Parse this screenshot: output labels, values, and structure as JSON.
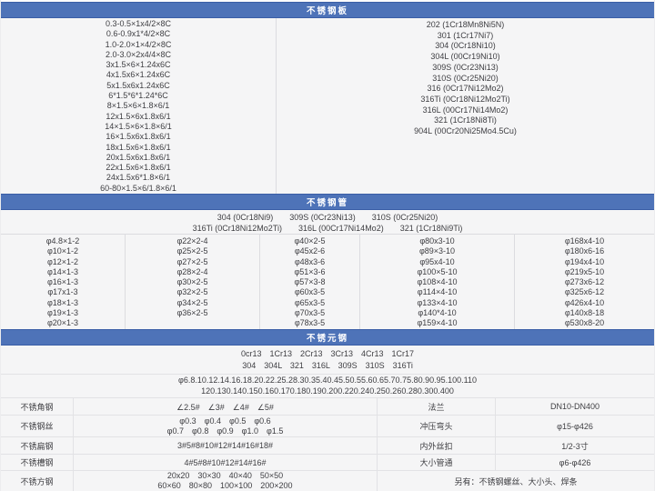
{
  "colors": {
    "header_bar": "#4e73b8",
    "header_border": "#3a5ea6",
    "body_bg": "#f5f5f6"
  },
  "sections": {
    "plate": {
      "title": "不锈钢板",
      "sizes": [
        "0.3-0.5×1x4/2×8C",
        "0.6-0.9x1*4/2×8C",
        "1.0-2.0×1×4/2×8C",
        "2.0-3.0×2x4/4×8C",
        "3x1.5×6×1.24x6C",
        "4x1.5x6×1.24x6C",
        "5x1.5x6x1.24x6C",
        "6*1.5*6*1.24*6C",
        "8×1.5×6×1.8×6/1",
        "12x1.5×6x1.8x6/1",
        "14×1.5×6×1.8×6/1",
        "16×1.5x6x1.8x6/1",
        "18x1.5x6×1.8x6/1",
        "20x1.5x6x1.8x6/1",
        "22x1.5x6×1.8x6/1",
        "24x1.5x6*1.8×6/1",
        "60-80×1.5×6/1.8×6/1"
      ],
      "grades": [
        "202 (1Cr18Mn8Ni5N)",
        "301 (1Cr17Ni7)",
        "304 (0Cr18Ni10)",
        "304L (00Cr19Ni10)",
        "309S (0Cr23Ni13)",
        "310S (0Cr25Ni20)",
        "316 (0Cr17Ni12Mo2)",
        "316Ti (0Cr18Ni12Mo2Ti)",
        "316L (00Cr17Ni14Mo2)",
        "321 (1Cr18Ni8Ti)",
        "904L (00Cr20Ni25Mo4.5Cu)"
      ]
    },
    "pipe": {
      "title": "不锈钢管",
      "grade_line1": "304 (0Cr18Ni9)　　309S (0Cr23Ni13)　　310S (0Cr25Ni20)",
      "grade_line2": "316Ti (0Cr18Ni12Mo2Ti)　　316L (00Cr17Ni14Mo2)　　321 (1Cr18Ni9Ti)",
      "columns": [
        [
          "φ4.8×1-2",
          "φ10×1-2",
          "φ12×1-2",
          "φ14×1-3",
          "φ16×1-3",
          "φ17x1-3",
          "φ18×1-3",
          "φ19×1-3",
          "φ20×1-3"
        ],
        [
          "φ22×2-4",
          "φ25×2-5",
          "φ27×2-5",
          "φ28×2-4",
          "φ30×2-5",
          "φ32×2-5",
          "φ34×2-5",
          "φ36×2-5",
          ""
        ],
        [
          "φ40×2-5",
          "φ45x2-6",
          "φ48x3-6",
          "φ51×3-6",
          "φ57×3-8",
          "φ60x3-5",
          "φ65x3-5",
          "φ70x3-5",
          "φ78x3-5"
        ],
        [
          "φ80x3-10",
          "φ89×3-10",
          "φ95x4-10",
          "φ100×5-10",
          "φ108×4-10",
          "φ114×4-10",
          "φ133×4-10",
          "φ140*4-10",
          "φ159×4-10"
        ],
        [
          "φ168x4-10",
          "φ180x6-16",
          "φ194x4-10",
          "φ219x5-10",
          "φ273x6-12",
          "φ325x6-12",
          "φ426x4-10",
          "φ140x8-18",
          "φ530x8-20"
        ]
      ]
    },
    "round": {
      "title": "不锈元钢",
      "grade_line1": "0cr13　1Cr13　2Cr13　3Cr13　4Cr13　1Cr17",
      "grade_line2": "304　304L　321　316L　309S　310S　316Ti",
      "size_line1": "φ6.8.10.12.14.16.18.20.22.25.28.30.35.40.45.50.55.60.65.70.75.80.90.95.100.110",
      "size_line2": "120.130.140.150.160.170.180.190.200.220.240.250.260.280.300.400"
    }
  },
  "misc": {
    "rows": [
      {
        "label": "不锈角钢",
        "value1": "∠2.5#　∠3#　∠4#　∠5#",
        "label2": "法兰",
        "value2": "DN10-DN400"
      },
      {
        "label": "不锈钢丝",
        "value1a": "φ0.3　φ0.4　φ0.5　φ0.6",
        "value1b": "φ0.7　φ0.8　φ0.9　φ1.0　φ1.5",
        "label2": "冲压弯头",
        "value2": "φ15-φ426"
      },
      {
        "label": "不锈扁钢",
        "value1": "3#5#8#10#12#14#16#18#",
        "label2": "内外丝扣",
        "value2": "1/2-3寸"
      },
      {
        "label": "不锈槽钢",
        "value1": "4#5#8#10#12#14#16#",
        "label2": "大小管通",
        "value2": "φ6-φ426"
      },
      {
        "label": "不锈方钢",
        "value1a": "20x20　30×30　40×40　50×50",
        "value1b": "60×60　80×80　100×100　200×200",
        "note": "另有：不锈钢螺丝、大小头、焊条"
      }
    ]
  }
}
